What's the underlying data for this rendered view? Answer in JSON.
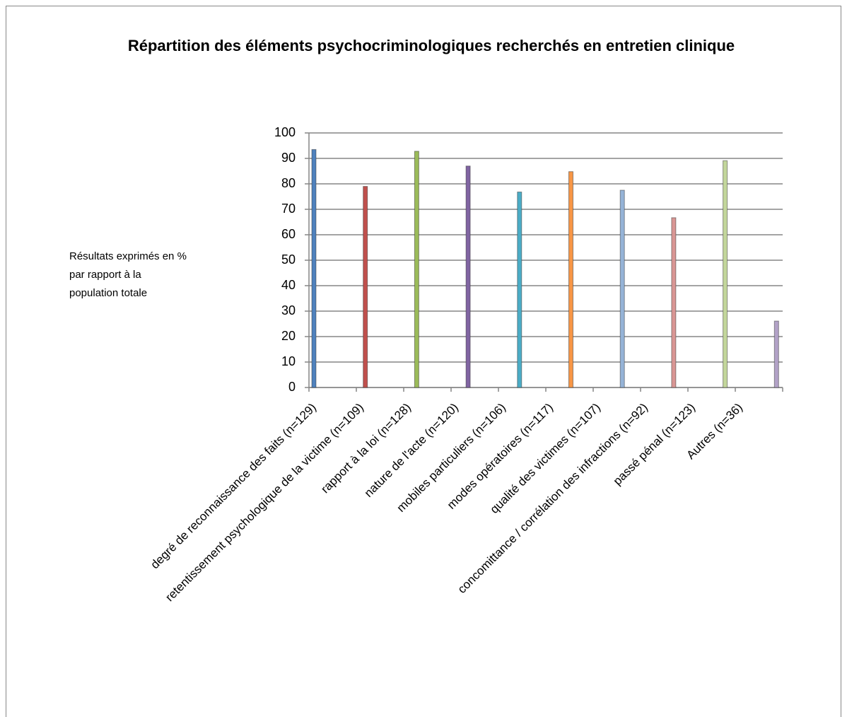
{
  "chart_data": {
    "type": "bar",
    "title": "Répartition des éléments psychocriminologiques  recherchés en entretien clinique",
    "annotation": [
      "Résultats exprimés en %",
      "par rapport à la",
      "population totale"
    ],
    "categories": [
      "degré de reconnaissance des faits (n=129)",
      "retentissement psychologique de la victime (n=109)",
      "rapport à la loi (n=128)",
      "nature de l'acte (n=120)",
      "mobiles particuliers (n=106)",
      "modes opératoires (n=117)",
      "qualité des victimes (n=107)",
      "concomittance / corrélation des infractions (n=92)",
      "passé pénal (n=123)",
      "Autres (n=36)"
    ],
    "values": [
      93.5,
      79,
      92.8,
      87,
      76.8,
      84.8,
      77.5,
      66.7,
      89.1,
      26.1
    ],
    "colors": [
      "#4f81bd",
      "#c0504d",
      "#9bbb59",
      "#8064a2",
      "#4bacc6",
      "#f79646",
      "#95b3d7",
      "#d99694",
      "#c3d69b",
      "#b2a2c7"
    ],
    "ylim": [
      0,
      100
    ],
    "yticks": [
      0,
      10,
      20,
      30,
      40,
      50,
      60,
      70,
      80,
      90,
      100
    ],
    "grid": true
  }
}
